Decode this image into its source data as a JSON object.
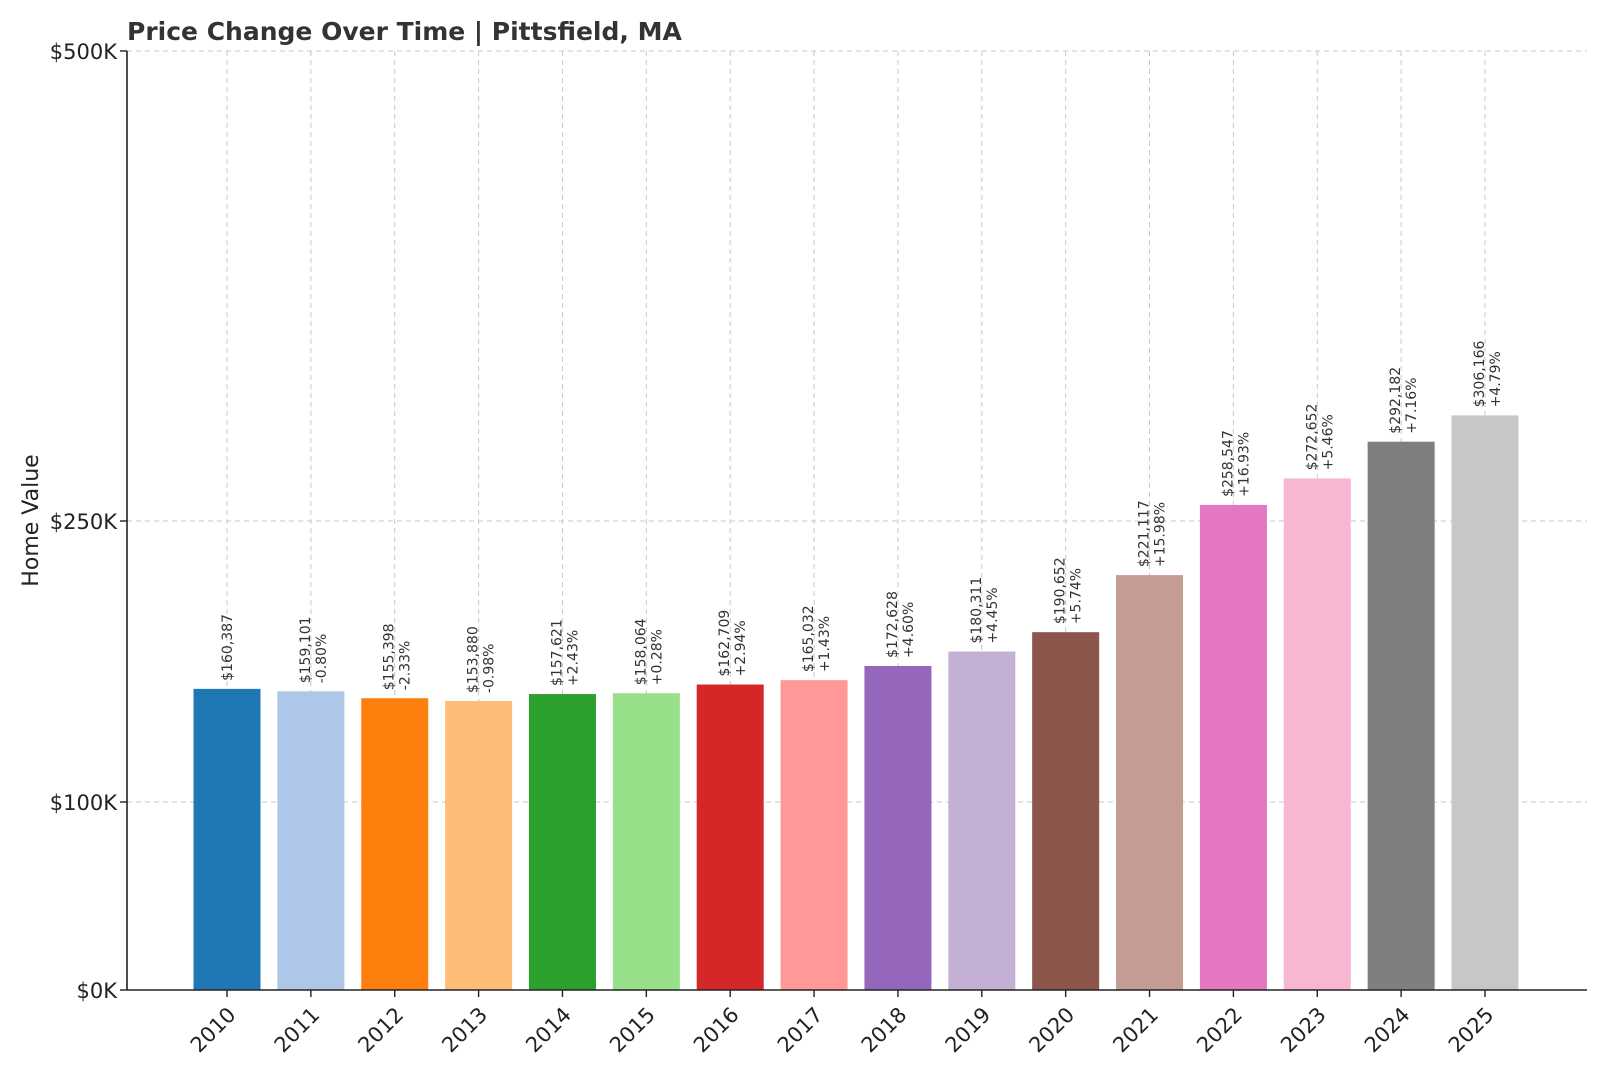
{
  "chart_data": {
    "type": "bar",
    "title": "Price Change Over Time | Pittsfield, MA",
    "xlabel": "",
    "ylabel": "Home Value",
    "ylim": [
      0,
      500000
    ],
    "yscale": "linear",
    "yticks": [
      {
        "value": 0,
        "label": "$0K"
      },
      {
        "value": 100000,
        "label": "$100K"
      },
      {
        "value": 250000,
        "label": "$250K"
      },
      {
        "value": 500000,
        "label": "$500K"
      }
    ],
    "grid": true,
    "legend": "none",
    "categories": [
      "2010",
      "2011",
      "2012",
      "2013",
      "2014",
      "2015",
      "2016",
      "2017",
      "2018",
      "2019",
      "2020",
      "2021",
      "2022",
      "2023",
      "2024",
      "2025"
    ],
    "values": [
      160387,
      159101,
      155398,
      153880,
      157621,
      158064,
      162709,
      165032,
      172628,
      180311,
      190652,
      221117,
      258547,
      272652,
      292182,
      306166
    ],
    "value_labels": [
      "$160,387",
      "$159,101",
      "$155,398",
      "$153,880",
      "$157,621",
      "$158,064",
      "$162,709",
      "$165,032",
      "$172,628",
      "$180,311",
      "$190,652",
      "$221,117",
      "$258,547",
      "$272,652",
      "$292,182",
      "$306,166"
    ],
    "change_labels": [
      "",
      "-0.80%",
      "-2.33%",
      "-0.98%",
      "+2.43%",
      "+0.28%",
      "+2.94%",
      "+1.43%",
      "+4.60%",
      "+4.45%",
      "+5.74%",
      "+15.98%",
      "+16.93%",
      "+5.46%",
      "+7.16%",
      "+4.79%"
    ],
    "colors": [
      "#1f77b4",
      "#aec7e8",
      "#ff7f0e",
      "#ffbb78",
      "#2ca02c",
      "#98df8a",
      "#d62728",
      "#ff9896",
      "#9467bd",
      "#c5b0d5",
      "#8c564b",
      "#c49c94",
      "#e377c2",
      "#f7b6d2",
      "#7f7f7f",
      "#c7c7c7"
    ]
  }
}
